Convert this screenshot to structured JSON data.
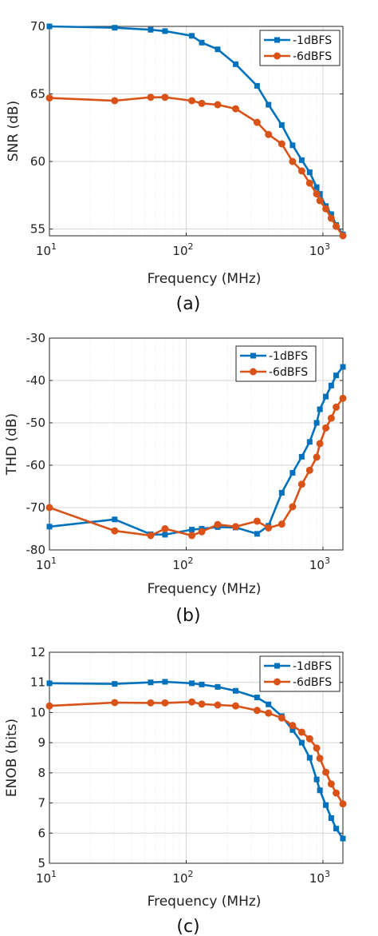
{
  "chart_data": [
    {
      "panel": "(a)",
      "type": "line",
      "xlabel": "Frequency (MHz)",
      "ylabel": "SNR (dB)",
      "xscale": "log",
      "xlim": [
        10,
        1400
      ],
      "ylim": [
        54.5,
        70
      ],
      "xticks": [
        10,
        100,
        1000
      ],
      "xtick_labels": [
        {
          "base": "10",
          "exp": "1"
        },
        {
          "base": "10",
          "exp": "2"
        },
        {
          "base": "10",
          "exp": "3"
        }
      ],
      "yticks": [
        55,
        60,
        65,
        70
      ],
      "ytick_labels": [
        "55",
        "60",
        "65",
        "70"
      ],
      "grid": true,
      "legend_position": "top-right",
      "series": [
        {
          "name": "-1dBFS",
          "color": "#0072bd",
          "marker": "square",
          "x": [
            10,
            30,
            55,
            70,
            110,
            130,
            170,
            230,
            330,
            400,
            500,
            600,
            700,
            800,
            900,
            950,
            1050,
            1150,
            1250,
            1400
          ],
          "y": [
            70.0,
            69.9,
            69.75,
            69.65,
            69.3,
            68.8,
            68.3,
            67.2,
            65.6,
            64.2,
            62.7,
            61.2,
            60.1,
            59.2,
            58.1,
            57.6,
            56.7,
            56.1,
            55.3,
            54.6
          ]
        },
        {
          "name": "-6dBFS",
          "color": "#d95319",
          "marker": "circle",
          "x": [
            10,
            30,
            55,
            70,
            110,
            130,
            170,
            230,
            330,
            400,
            500,
            600,
            700,
            800,
            900,
            950,
            1050,
            1150,
            1250,
            1400
          ],
          "y": [
            64.7,
            64.5,
            64.75,
            64.75,
            64.5,
            64.3,
            64.2,
            63.9,
            62.9,
            62.0,
            61.3,
            60.0,
            59.3,
            58.4,
            57.6,
            57.1,
            56.5,
            55.8,
            55.2,
            54.5
          ]
        }
      ]
    },
    {
      "panel": "(b)",
      "type": "line",
      "xlabel": "Frequency (MHz)",
      "ylabel": "THD (dB)",
      "xscale": "log",
      "xlim": [
        10,
        1400
      ],
      "ylim": [
        -80,
        -30
      ],
      "xticks": [
        10,
        100,
        1000
      ],
      "xtick_labels": [
        {
          "base": "10",
          "exp": "1"
        },
        {
          "base": "10",
          "exp": "2"
        },
        {
          "base": "10",
          "exp": "3"
        }
      ],
      "yticks": [
        -80,
        -70,
        -60,
        -50,
        -40,
        -30
      ],
      "ytick_labels": [
        "-80",
        "-70",
        "-60",
        "-50",
        "-40",
        "-30"
      ],
      "grid": true,
      "legend_position": "top-right",
      "series": [
        {
          "name": "-1dBFS",
          "color": "#0072bd",
          "marker": "square",
          "x": [
            10,
            30,
            55,
            70,
            110,
            130,
            170,
            230,
            330,
            400,
            500,
            600,
            700,
            800,
            900,
            950,
            1050,
            1150,
            1250,
            1400
          ],
          "y": [
            -74.5,
            -72.8,
            -76.3,
            -76.4,
            -75.2,
            -75.0,
            -74.6,
            -74.7,
            -76.2,
            -74.3,
            -66.5,
            -61.8,
            -58.0,
            -54.5,
            -50.0,
            -46.8,
            -43.8,
            -41.2,
            -38.8,
            -36.8
          ]
        },
        {
          "name": "-6dBFS",
          "color": "#d95319",
          "marker": "circle",
          "x": [
            10,
            30,
            55,
            70,
            110,
            130,
            170,
            230,
            330,
            400,
            500,
            600,
            700,
            800,
            900,
            950,
            1050,
            1150,
            1250,
            1400
          ],
          "y": [
            -70.0,
            -75.5,
            -76.6,
            -75.0,
            -76.6,
            -75.7,
            -74.0,
            -74.5,
            -73.2,
            -74.8,
            -73.9,
            -69.8,
            -64.5,
            -61.2,
            -58.1,
            -54.9,
            -51.2,
            -48.9,
            -46.3,
            -44.2
          ]
        }
      ]
    },
    {
      "panel": "(c)",
      "type": "line",
      "xlabel": "Frequency (MHz)",
      "ylabel": "ENOB (bits)",
      "xscale": "log",
      "xlim": [
        10,
        1400
      ],
      "ylim": [
        5,
        12
      ],
      "xticks": [
        10,
        100,
        1000
      ],
      "xtick_labels": [
        {
          "base": "10",
          "exp": "1"
        },
        {
          "base": "10",
          "exp": "2"
        },
        {
          "base": "10",
          "exp": "3"
        }
      ],
      "yticks": [
        5,
        6,
        7,
        8,
        9,
        10,
        11,
        12
      ],
      "ytick_labels": [
        "5",
        "6",
        "7",
        "8",
        "9",
        "10",
        "11",
        "12"
      ],
      "grid": true,
      "legend_position": "top-right",
      "series": [
        {
          "name": "-1dBFS",
          "color": "#0072bd",
          "marker": "square",
          "x": [
            10,
            30,
            55,
            70,
            110,
            130,
            170,
            230,
            330,
            400,
            500,
            600,
            700,
            800,
            900,
            950,
            1050,
            1150,
            1250,
            1400
          ],
          "y": [
            10.97,
            10.95,
            11.0,
            11.02,
            10.97,
            10.93,
            10.85,
            10.72,
            10.5,
            10.27,
            9.88,
            9.42,
            9.0,
            8.5,
            7.78,
            7.42,
            6.93,
            6.5,
            6.15,
            5.82
          ]
        },
        {
          "name": "-6dBFS",
          "color": "#d95319",
          "marker": "circle",
          "x": [
            10,
            30,
            55,
            70,
            110,
            130,
            170,
            230,
            330,
            400,
            500,
            600,
            700,
            800,
            900,
            950,
            1050,
            1150,
            1250,
            1400
          ],
          "y": [
            10.22,
            10.33,
            10.32,
            10.32,
            10.35,
            10.28,
            10.25,
            10.22,
            10.07,
            9.98,
            9.82,
            9.57,
            9.35,
            9.13,
            8.82,
            8.48,
            8.02,
            7.63,
            7.33,
            6.97
          ]
        }
      ]
    }
  ]
}
